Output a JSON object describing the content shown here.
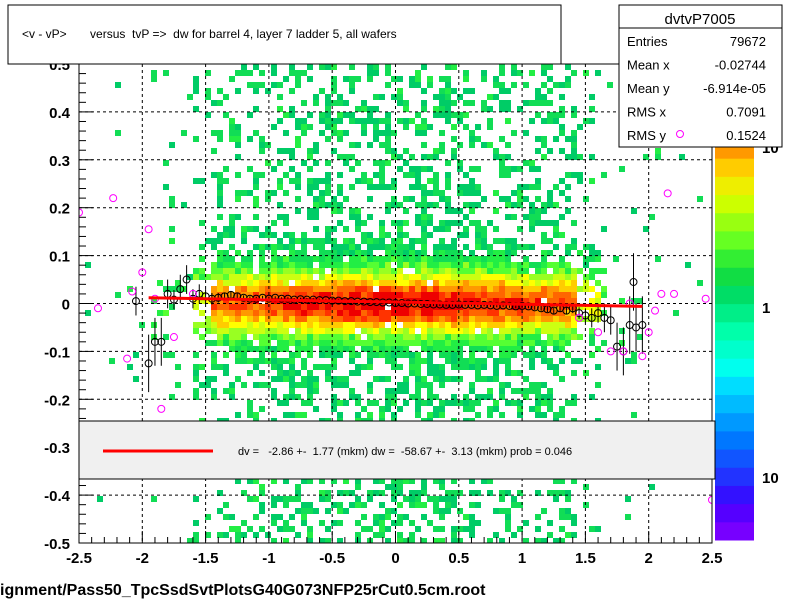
{
  "title": "<v - vP>       versus  tvP =>  dw for barrel 4, layer 7 ladder 5, all wafers",
  "footer": "ignment/Pass50_TpcSsdSvtPlotsG40G073NFP25rCut0.5cm.root",
  "stats": {
    "name": "dvtvP7005",
    "rows": [
      {
        "label": "Entries",
        "value": "79672"
      },
      {
        "label": "Mean x",
        "value": "-0.02744"
      },
      {
        "label": "Mean y",
        "value": "-6.914e-05"
      },
      {
        "label": "RMS x",
        "value": "0.7091"
      },
      {
        "label": "RMS y",
        "value": "0.1524"
      }
    ]
  },
  "fit_legend": "dv =   -2.86 +-  1.77 (mkm) dw =  -58.67 +-  3.13 (mkm) prob = 0.046",
  "colors": {
    "fit_line": "#ff0000",
    "marker_open": "#000000",
    "marker_outlier": "#ff00ff",
    "frame": "#000000"
  },
  "chart_data": {
    "type": "heatmap",
    "xlim": [
      -2.5,
      2.5
    ],
    "ylim": [
      -0.5,
      0.5
    ],
    "x_ticks": [
      "-2.5",
      "-2",
      "-1.5",
      "-1",
      "-0.5",
      "0",
      "0.5",
      "1",
      "1.5",
      "2",
      "2.5"
    ],
    "y_ticks": [
      "-0.5",
      "-0.4",
      "-0.3",
      "-0.2",
      "-0.1",
      "0",
      "0.1",
      "0.2",
      "0.3",
      "0.4"
    ],
    "y_ticks_partial_top": "0.5",
    "palette_labels": [
      "1",
      "10"
    ],
    "palette_partial_top": "10",
    "grid": true,
    "fit_line": {
      "x": [
        -1.95,
        1.95
      ],
      "y": [
        0.012,
        -0.006
      ]
    },
    "profile_points": [
      {
        "x": -2.05,
        "y": 0.005,
        "e": 0.03
      },
      {
        "x": -1.95,
        "y": -0.125,
        "e": 0.06
      },
      {
        "x": -1.9,
        "y": -0.08,
        "e": 0.05
      },
      {
        "x": -1.85,
        "y": -0.08,
        "e": 0.05
      },
      {
        "x": -1.8,
        "y": 0.02,
        "e": 0.03
      },
      {
        "x": -1.75,
        "y": 0.008,
        "e": 0.02
      },
      {
        "x": -1.7,
        "y": 0.03,
        "e": 0.03
      },
      {
        "x": -1.65,
        "y": 0.05,
        "e": 0.03
      },
      {
        "x": -1.6,
        "y": 0.01,
        "e": 0.02
      },
      {
        "x": -1.55,
        "y": 0.02,
        "e": 0.02
      },
      {
        "x": -1.5,
        "y": 0.015,
        "e": 0.015
      },
      {
        "x": -1.45,
        "y": 0.01,
        "e": 0.012
      },
      {
        "x": -1.4,
        "y": 0.012,
        "e": 0.01
      },
      {
        "x": -1.35,
        "y": 0.015,
        "e": 0.008
      },
      {
        "x": -1.3,
        "y": 0.018,
        "e": 0.007
      },
      {
        "x": -1.25,
        "y": 0.015,
        "e": 0.006
      },
      {
        "x": -1.2,
        "y": 0.012,
        "e": 0.005
      },
      {
        "x": -1.15,
        "y": 0.01,
        "e": 0.005
      },
      {
        "x": -1.1,
        "y": 0.01,
        "e": 0.004
      },
      {
        "x": -1.05,
        "y": 0.012,
        "e": 0.004
      },
      {
        "x": -1.0,
        "y": 0.01,
        "e": 0.004
      },
      {
        "x": -0.95,
        "y": 0.012,
        "e": 0.003
      },
      {
        "x": -0.9,
        "y": 0.01,
        "e": 0.003
      },
      {
        "x": -0.85,
        "y": 0.01,
        "e": 0.003
      },
      {
        "x": -0.8,
        "y": 0.008,
        "e": 0.003
      },
      {
        "x": -0.75,
        "y": 0.009,
        "e": 0.003
      },
      {
        "x": -0.7,
        "y": 0.008,
        "e": 0.003
      },
      {
        "x": -0.65,
        "y": 0.008,
        "e": 0.003
      },
      {
        "x": -0.6,
        "y": 0.007,
        "e": 0.003
      },
      {
        "x": -0.55,
        "y": 0.007,
        "e": 0.003
      },
      {
        "x": -0.5,
        "y": 0.006,
        "e": 0.003
      },
      {
        "x": -0.45,
        "y": 0.006,
        "e": 0.003
      },
      {
        "x": -0.4,
        "y": 0.005,
        "e": 0.003
      },
      {
        "x": -0.35,
        "y": 0.005,
        "e": 0.003
      },
      {
        "x": -0.3,
        "y": 0.004,
        "e": 0.003
      },
      {
        "x": -0.25,
        "y": 0.004,
        "e": 0.003
      },
      {
        "x": -0.2,
        "y": 0.003,
        "e": 0.003
      },
      {
        "x": -0.15,
        "y": 0.003,
        "e": 0.003
      },
      {
        "x": -0.1,
        "y": 0.002,
        "e": 0.003
      },
      {
        "x": -0.05,
        "y": 0.002,
        "e": 0.003
      },
      {
        "x": 0.0,
        "y": 0.001,
        "e": 0.003
      },
      {
        "x": 0.05,
        "y": 0.001,
        "e": 0.003
      },
      {
        "x": 0.1,
        "y": 0.0,
        "e": 0.003
      },
      {
        "x": 0.15,
        "y": 0.0,
        "e": 0.003
      },
      {
        "x": 0.2,
        "y": -0.001,
        "e": 0.003
      },
      {
        "x": 0.25,
        "y": -0.001,
        "e": 0.003
      },
      {
        "x": 0.3,
        "y": -0.002,
        "e": 0.003
      },
      {
        "x": 0.35,
        "y": -0.002,
        "e": 0.003
      },
      {
        "x": 0.4,
        "y": -0.003,
        "e": 0.003
      },
      {
        "x": 0.45,
        "y": -0.003,
        "e": 0.003
      },
      {
        "x": 0.5,
        "y": -0.002,
        "e": 0.003
      },
      {
        "x": 0.55,
        "y": -0.003,
        "e": 0.003
      },
      {
        "x": 0.6,
        "y": -0.003,
        "e": 0.003
      },
      {
        "x": 0.65,
        "y": -0.004,
        "e": 0.003
      },
      {
        "x": 0.7,
        "y": -0.003,
        "e": 0.003
      },
      {
        "x": 0.75,
        "y": -0.004,
        "e": 0.003
      },
      {
        "x": 0.8,
        "y": -0.005,
        "e": 0.003
      },
      {
        "x": 0.85,
        "y": -0.004,
        "e": 0.003
      },
      {
        "x": 0.9,
        "y": -0.005,
        "e": 0.004
      },
      {
        "x": 0.95,
        "y": -0.006,
        "e": 0.004
      },
      {
        "x": 1.0,
        "y": -0.005,
        "e": 0.004
      },
      {
        "x": 1.05,
        "y": -0.006,
        "e": 0.004
      },
      {
        "x": 1.1,
        "y": -0.008,
        "e": 0.005
      },
      {
        "x": 1.15,
        "y": -0.01,
        "e": 0.005
      },
      {
        "x": 1.2,
        "y": -0.012,
        "e": 0.006
      },
      {
        "x": 1.25,
        "y": -0.015,
        "e": 0.006
      },
      {
        "x": 1.3,
        "y": -0.01,
        "e": 0.007
      },
      {
        "x": 1.35,
        "y": -0.015,
        "e": 0.008
      },
      {
        "x": 1.4,
        "y": -0.01,
        "e": 0.01
      },
      {
        "x": 1.45,
        "y": -0.02,
        "e": 0.012
      },
      {
        "x": 1.5,
        "y": -0.025,
        "e": 0.015
      },
      {
        "x": 1.55,
        "y": -0.03,
        "e": 0.02
      },
      {
        "x": 1.6,
        "y": -0.02,
        "e": 0.02
      },
      {
        "x": 1.65,
        "y": -0.03,
        "e": 0.03
      },
      {
        "x": 1.7,
        "y": -0.035,
        "e": 0.03
      },
      {
        "x": 1.75,
        "y": -0.09,
        "e": 0.05
      },
      {
        "x": 1.8,
        "y": -0.1,
        "e": 0.05
      },
      {
        "x": 1.85,
        "y": -0.045,
        "e": 0.06
      },
      {
        "x": 1.88,
        "y": 0.045,
        "e": 0.06
      },
      {
        "x": 1.9,
        "y": -0.05,
        "e": 0.05
      },
      {
        "x": 1.95,
        "y": -0.045,
        "e": 0.06
      }
    ],
    "outlier_points": [
      {
        "x": -2.5,
        "y": 0.19
      },
      {
        "x": -2.35,
        "y": -0.01
      },
      {
        "x": -2.23,
        "y": 0.22
      },
      {
        "x": -2.12,
        "y": -0.115
      },
      {
        "x": -2.08,
        "y": 0.025
      },
      {
        "x": -2.0,
        "y": 0.065
      },
      {
        "x": -1.95,
        "y": 0.155
      },
      {
        "x": -1.9,
        "y": 0.01
      },
      {
        "x": -1.85,
        "y": -0.22
      },
      {
        "x": -1.75,
        "y": -0.07
      },
      {
        "x": -1.6,
        "y": 0.02
      },
      {
        "x": 1.45,
        "y": -0.03
      },
      {
        "x": 1.6,
        "y": -0.06
      },
      {
        "x": 1.7,
        "y": -0.1
      },
      {
        "x": 1.8,
        "y": -0.1
      },
      {
        "x": 1.85,
        "y": 0.0
      },
      {
        "x": 1.95,
        "y": -0.11
      },
      {
        "x": 2.0,
        "y": -0.06
      },
      {
        "x": 2.05,
        "y": -0.015
      },
      {
        "x": 2.1,
        "y": 0.02
      },
      {
        "x": 2.15,
        "y": 0.23
      },
      {
        "x": 2.2,
        "y": 0.02
      },
      {
        "x": 2.45,
        "y": 0.01
      },
      {
        "x": 2.5,
        "y": -0.41
      }
    ]
  }
}
